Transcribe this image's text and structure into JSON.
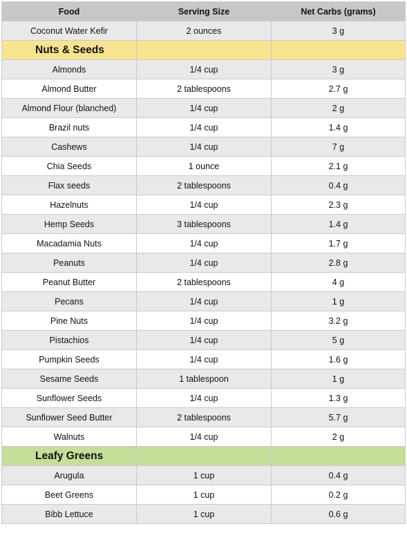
{
  "columns": {
    "food": "Food",
    "serving": "Serving Size",
    "carbs": "Net Carbs (grams)"
  },
  "intro_rows": [
    {
      "food": "Coconut Water Kefir",
      "serving": "2 ounces",
      "carbs": "3 g"
    }
  ],
  "sections": [
    {
      "title": "Nuts & Seeds",
      "color": "#f7e491",
      "rows": [
        {
          "food": "Almonds",
          "serving": "1/4 cup",
          "carbs": "3 g"
        },
        {
          "food": "Almond Butter",
          "serving": "2 tablespoons",
          "carbs": "2.7 g"
        },
        {
          "food": "Almond Flour (blanched)",
          "serving": "1/4 cup",
          "carbs": "2 g"
        },
        {
          "food": "Brazil nuts",
          "serving": "1/4 cup",
          "carbs": "1.4 g"
        },
        {
          "food": "Cashews",
          "serving": "1/4 cup",
          "carbs": "7 g"
        },
        {
          "food": "Chia Seeds",
          "serving": "1 ounce",
          "carbs": "2.1 g"
        },
        {
          "food": "Flax seeds",
          "serving": "2 tablespoons",
          "carbs": "0.4 g"
        },
        {
          "food": "Hazelnuts",
          "serving": "1/4 cup",
          "carbs": "2.3 g"
        },
        {
          "food": "Hemp Seeds",
          "serving": "3 tablespoons",
          "carbs": "1.4 g"
        },
        {
          "food": "Macadamia Nuts",
          "serving": "1/4 cup",
          "carbs": "1.7 g"
        },
        {
          "food": "Peanuts",
          "serving": "1/4 cup",
          "carbs": "2.8 g"
        },
        {
          "food": "Peanut Butter",
          "serving": "2 tablespoons",
          "carbs": "4 g"
        },
        {
          "food": "Pecans",
          "serving": "1/4 cup",
          "carbs": "1 g"
        },
        {
          "food": "Pine Nuts",
          "serving": "1/4 cup",
          "carbs": "3.2 g"
        },
        {
          "food": "Pistachios",
          "serving": "1/4 cup",
          "carbs": "5 g"
        },
        {
          "food": "Pumpkin Seeds",
          "serving": "1/4 cup",
          "carbs": "1.6 g"
        },
        {
          "food": "Sesame Seeds",
          "serving": "1 tablespoon",
          "carbs": "1 g"
        },
        {
          "food": "Sunflower Seeds",
          "serving": "1/4 cup",
          "carbs": "1.3 g"
        },
        {
          "food": "Sunflower Seed Butter",
          "serving": "2 tablespoons",
          "carbs": "5.7 g"
        },
        {
          "food": "Walnuts",
          "serving": "1/4 cup",
          "carbs": "2 g"
        }
      ]
    },
    {
      "title": "Leafy Greens",
      "color": "#c5de9a",
      "rows": [
        {
          "food": "Arugula",
          "serving": "1 cup",
          "carbs": "0.4 g"
        },
        {
          "food": "Beet Greens",
          "serving": "1 cup",
          "carbs": "0.2 g"
        },
        {
          "food": "Bibb Lettuce",
          "serving": "1 cup",
          "carbs": "0.6 g"
        }
      ]
    }
  ]
}
